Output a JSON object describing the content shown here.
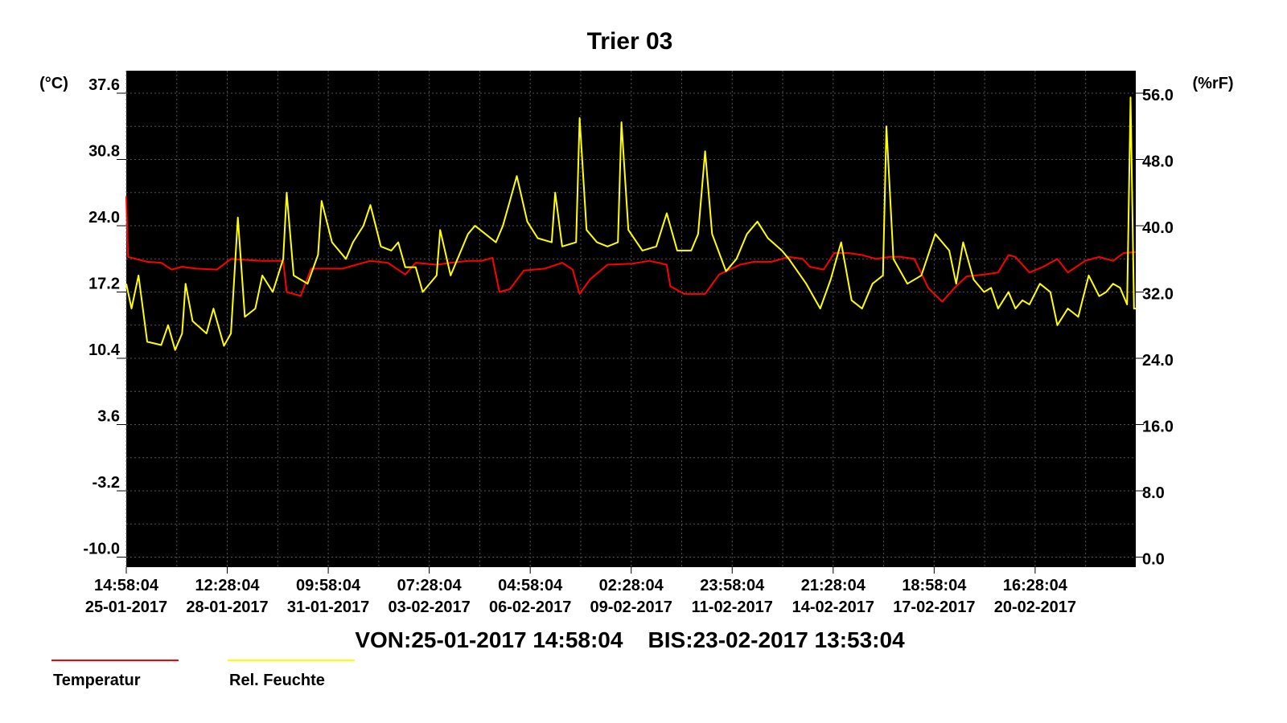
{
  "colors": {
    "background": "#000000",
    "grid": "#555555",
    "temperature": "#ff0000",
    "humidity": "#ffff00"
  },
  "chart_data": {
    "type": "line",
    "title": "Trier 03",
    "ylabel_left": "(°C)",
    "ylabel_right": "(%rF)",
    "ylim_left": [
      -10.0,
      37.6
    ],
    "ylim_right": [
      0.0,
      56.0
    ],
    "yticks_left": [
      "37.6",
      "30.8",
      "24.0",
      "17.2",
      "10.4",
      "3.6",
      "-3.2",
      "-10.0"
    ],
    "yticks_right": [
      "56.0",
      "48.0",
      "40.0",
      "32.0",
      "24.0",
      "16.0",
      "8.0",
      "0.0"
    ],
    "xlim_days": [
      0,
      28.95
    ],
    "xticks": [
      {
        "time": "14:58:04",
        "date": "25-01-2017"
      },
      {
        "time": "12:28:04",
        "date": "28-01-2017"
      },
      {
        "time": "09:58:04",
        "date": "31-01-2017"
      },
      {
        "time": "07:28:04",
        "date": "03-02-2017"
      },
      {
        "time": "04:58:04",
        "date": "06-02-2017"
      },
      {
        "time": "02:28:04",
        "date": "09-02-2017"
      },
      {
        "time": "23:58:04",
        "date": "11-02-2017"
      },
      {
        "time": "21:28:04",
        "date": "14-02-2017"
      },
      {
        "time": "18:58:04",
        "date": "17-02-2017"
      },
      {
        "time": "16:28:04",
        "date": "20-02-2017"
      }
    ],
    "range_label": "VON:25-01-2017 14:58:04    BIS:23-02-2017 13:53:04",
    "grid": true,
    "legend_placement": "bottom-left",
    "series": [
      {
        "name": "Temperatur",
        "axis": "left",
        "color": "#ff0000",
        "points": [
          [
            0,
            27.0
          ],
          [
            0.05,
            20.8
          ],
          [
            0.6,
            20.3
          ],
          [
            1.0,
            20.2
          ],
          [
            1.3,
            19.5
          ],
          [
            1.6,
            19.8
          ],
          [
            2.0,
            19.6
          ],
          [
            2.6,
            19.5
          ],
          [
            3.0,
            20.6
          ],
          [
            3.4,
            20.5
          ],
          [
            3.9,
            20.4
          ],
          [
            4.5,
            20.4
          ],
          [
            4.6,
            17.2
          ],
          [
            5.0,
            16.8
          ],
          [
            5.3,
            19.6
          ],
          [
            5.8,
            19.6
          ],
          [
            6.2,
            19.6
          ],
          [
            6.6,
            20.0
          ],
          [
            7.0,
            20.4
          ],
          [
            7.5,
            20.2
          ],
          [
            8.0,
            19.0
          ],
          [
            8.3,
            20.2
          ],
          [
            8.9,
            20.0
          ],
          [
            9.3,
            20.2
          ],
          [
            9.8,
            20.4
          ],
          [
            10.2,
            20.4
          ],
          [
            10.5,
            20.7
          ],
          [
            10.7,
            17.2
          ],
          [
            11.0,
            17.5
          ],
          [
            11.4,
            19.4
          ],
          [
            12.0,
            19.6
          ],
          [
            12.5,
            20.2
          ],
          [
            12.8,
            19.5
          ],
          [
            13.0,
            17.0
          ],
          [
            13.3,
            18.5
          ],
          [
            13.8,
            20.0
          ],
          [
            14.5,
            20.1
          ],
          [
            15.0,
            20.4
          ],
          [
            15.5,
            20.0
          ],
          [
            15.6,
            17.8
          ],
          [
            16.0,
            17.0
          ],
          [
            16.6,
            17.0
          ],
          [
            17.0,
            19.0
          ],
          [
            17.6,
            20.0
          ],
          [
            18.0,
            20.3
          ],
          [
            18.5,
            20.3
          ],
          [
            19.0,
            20.8
          ],
          [
            19.4,
            20.6
          ],
          [
            19.6,
            19.8
          ],
          [
            20.0,
            19.5
          ],
          [
            20.3,
            21.2
          ],
          [
            20.7,
            21.2
          ],
          [
            21.1,
            21.0
          ],
          [
            21.5,
            20.6
          ],
          [
            21.9,
            20.8
          ],
          [
            22.2,
            20.8
          ],
          [
            22.6,
            20.6
          ],
          [
            23.0,
            17.6
          ],
          [
            23.4,
            16.2
          ],
          [
            23.8,
            17.8
          ],
          [
            24.1,
            18.8
          ],
          [
            24.6,
            19.0
          ],
          [
            25.0,
            19.2
          ],
          [
            25.3,
            21.0
          ],
          [
            25.5,
            20.8
          ],
          [
            25.9,
            19.2
          ],
          [
            26.3,
            19.8
          ],
          [
            26.7,
            20.6
          ],
          [
            27.0,
            19.2
          ],
          [
            27.5,
            20.4
          ],
          [
            27.9,
            20.8
          ],
          [
            28.3,
            20.4
          ],
          [
            28.6,
            21.2
          ],
          [
            28.95,
            21.3
          ]
        ]
      },
      {
        "name": "Rel. Feuchte",
        "axis": "right",
        "color": "#ffff00",
        "points": [
          [
            0,
            33.0
          ],
          [
            0.15,
            30.0
          ],
          [
            0.35,
            34.0
          ],
          [
            0.6,
            26.0
          ],
          [
            1.0,
            25.6
          ],
          [
            1.2,
            28.0
          ],
          [
            1.4,
            25.0
          ],
          [
            1.6,
            27.0
          ],
          [
            1.7,
            33.0
          ],
          [
            1.9,
            28.5
          ],
          [
            2.3,
            27.0
          ],
          [
            2.5,
            30.0
          ],
          [
            2.8,
            25.5
          ],
          [
            3.0,
            27.0
          ],
          [
            3.2,
            41.0
          ],
          [
            3.4,
            29.0
          ],
          [
            3.7,
            30.0
          ],
          [
            3.9,
            34.0
          ],
          [
            4.2,
            32.0
          ],
          [
            4.5,
            36.0
          ],
          [
            4.6,
            44.0
          ],
          [
            4.8,
            34.0
          ],
          [
            5.2,
            33.0
          ],
          [
            5.5,
            36.5
          ],
          [
            5.6,
            43.0
          ],
          [
            5.9,
            38.0
          ],
          [
            6.3,
            36.0
          ],
          [
            6.5,
            38.0
          ],
          [
            6.8,
            40.0
          ],
          [
            7.0,
            42.5
          ],
          [
            7.3,
            37.5
          ],
          [
            7.6,
            37.0
          ],
          [
            7.8,
            38.0
          ],
          [
            8.0,
            35.0
          ],
          [
            8.3,
            35.0
          ],
          [
            8.5,
            32.0
          ],
          [
            8.9,
            34.0
          ],
          [
            9.0,
            39.5
          ],
          [
            9.3,
            34.0
          ],
          [
            9.6,
            37.0
          ],
          [
            9.8,
            39.0
          ],
          [
            10.0,
            40.0
          ],
          [
            10.3,
            39.0
          ],
          [
            10.6,
            38.0
          ],
          [
            10.8,
            40.0
          ],
          [
            11.0,
            43.0
          ],
          [
            11.2,
            46.0
          ],
          [
            11.5,
            40.5
          ],
          [
            11.8,
            38.5
          ],
          [
            12.2,
            38.0
          ],
          [
            12.3,
            44.0
          ],
          [
            12.5,
            37.5
          ],
          [
            12.9,
            38.0
          ],
          [
            13.0,
            53.0
          ],
          [
            13.2,
            39.5
          ],
          [
            13.5,
            38.0
          ],
          [
            13.8,
            37.5
          ],
          [
            14.1,
            38.0
          ],
          [
            14.2,
            52.5
          ],
          [
            14.4,
            39.5
          ],
          [
            14.8,
            37.0
          ],
          [
            15.2,
            37.5
          ],
          [
            15.5,
            41.5
          ],
          [
            15.8,
            37.0
          ],
          [
            16.2,
            37.0
          ],
          [
            16.4,
            39.0
          ],
          [
            16.6,
            49.0
          ],
          [
            16.8,
            39.0
          ],
          [
            17.2,
            34.5
          ],
          [
            17.5,
            36.0
          ],
          [
            17.8,
            39.0
          ],
          [
            18.1,
            40.5
          ],
          [
            18.4,
            38.5
          ],
          [
            18.8,
            37.0
          ],
          [
            19.0,
            36.0
          ],
          [
            19.5,
            33.0
          ],
          [
            19.9,
            30.0
          ],
          [
            20.2,
            33.5
          ],
          [
            20.5,
            38.0
          ],
          [
            20.8,
            31.0
          ],
          [
            21.1,
            30.0
          ],
          [
            21.4,
            33.0
          ],
          [
            21.7,
            34.0
          ],
          [
            21.8,
            52.0
          ],
          [
            22.0,
            36.0
          ],
          [
            22.4,
            33.0
          ],
          [
            22.8,
            34.0
          ],
          [
            23.2,
            39.0
          ],
          [
            23.6,
            37.0
          ],
          [
            23.8,
            33.0
          ],
          [
            24.0,
            38.0
          ],
          [
            24.3,
            33.5
          ],
          [
            24.6,
            32.0
          ],
          [
            24.8,
            32.5
          ],
          [
            25.0,
            30.0
          ],
          [
            25.3,
            32.0
          ],
          [
            25.5,
            30.0
          ],
          [
            25.7,
            31.0
          ],
          [
            25.9,
            30.5
          ],
          [
            26.2,
            33.0
          ],
          [
            26.5,
            32.0
          ],
          [
            26.7,
            28.0
          ],
          [
            27.0,
            30.0
          ],
          [
            27.3,
            29.0
          ],
          [
            27.6,
            34.0
          ],
          [
            27.9,
            31.5
          ],
          [
            28.1,
            32.0
          ],
          [
            28.3,
            33.0
          ],
          [
            28.5,
            32.5
          ],
          [
            28.7,
            30.5
          ],
          [
            28.8,
            55.5
          ],
          [
            28.9,
            30.0
          ],
          [
            28.95,
            30.0
          ]
        ]
      }
    ]
  }
}
